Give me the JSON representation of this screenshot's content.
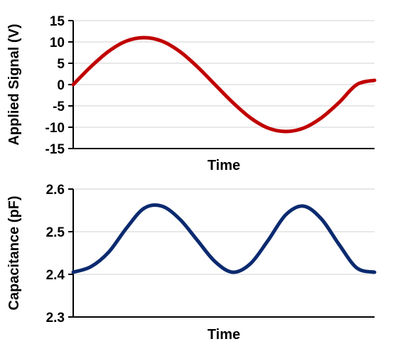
{
  "chart_data": [
    {
      "type": "line",
      "ylabel": "Applied Signal (V)",
      "xlabel": "Time",
      "ylim": [
        -15,
        15
      ],
      "yticks": [
        15,
        10,
        5,
        0,
        -5,
        -10,
        -15
      ],
      "ytick_labels": [
        "15",
        "10",
        "5",
        "0",
        "-5",
        "-10",
        "-15"
      ],
      "grid": "horizontal",
      "series": [
        {
          "color": "#c00000",
          "values": [
            0,
            4.2,
            7.8,
            10.2,
            11.0,
            10.2,
            7.8,
            4.2,
            0,
            -4.2,
            -7.8,
            -10.2,
            -11.0,
            -10.2,
            -7.8,
            -4.2,
            0,
            1.0
          ]
        }
      ]
    },
    {
      "type": "line",
      "ylabel": "Capacitance (pF)",
      "xlabel": "Time",
      "ylim": [
        2.3,
        2.6
      ],
      "yticks": [
        2.6,
        2.5,
        2.4,
        2.3
      ],
      "ytick_labels": [
        "2.6",
        "2.5",
        "2.4",
        "2.3"
      ],
      "grid": "horizontal",
      "series": [
        {
          "color": "#0b2a6f",
          "values": [
            2.405,
            2.418,
            2.452,
            2.508,
            2.555,
            2.56,
            2.53,
            2.48,
            2.43,
            2.405,
            2.425,
            2.48,
            2.54,
            2.56,
            2.53,
            2.47,
            2.415,
            2.405
          ]
        }
      ]
    }
  ]
}
